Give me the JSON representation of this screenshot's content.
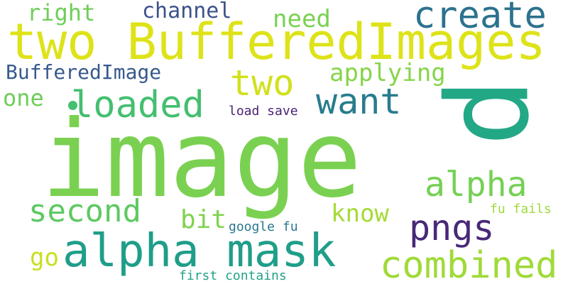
{
  "words": [
    {
      "text": "image",
      "color": "#7ad151"
    },
    {
      "text": "two BufferedImages",
      "color": "#dde318"
    },
    {
      "text": "p",
      "color": "#22a884"
    },
    {
      "text": "alpha mask",
      "color": "#1f9e89"
    },
    {
      "text": "combined",
      "color": "#a0da39"
    },
    {
      "text": "create",
      "color": "#2c728e"
    },
    {
      "text": "loaded",
      "color": "#44bf70"
    },
    {
      "text": "want",
      "color": "#287c8e"
    },
    {
      "text": "two",
      "color": "#d0e11c"
    },
    {
      "text": "second",
      "color": "#5ec962"
    },
    {
      "text": "alpha",
      "color": "#75d054"
    },
    {
      "text": "pngs",
      "color": "#482878"
    },
    {
      "text": "BufferedImage",
      "color": "#375a8c"
    },
    {
      "text": "applying",
      "color": "#86d549"
    },
    {
      "text": "channel",
      "color": "#3b528b"
    },
    {
      "text": "need",
      "color": "#7ad151"
    },
    {
      "text": "right",
      "color": "#6ece58"
    },
    {
      "text": "one",
      "color": "#6ece58"
    },
    {
      "text": "know",
      "color": "#a5db36"
    },
    {
      "text": "bit",
      "color": "#7fd34e"
    },
    {
      "text": "go",
      "color": "#c8e020"
    },
    {
      "text": "load save",
      "color": "#482475"
    },
    {
      "text": "google fu",
      "color": "#2a788e"
    },
    {
      "text": "fu fails",
      "color": "#9fda3a"
    },
    {
      "text": "first contains",
      "color": "#20a386"
    }
  ]
}
